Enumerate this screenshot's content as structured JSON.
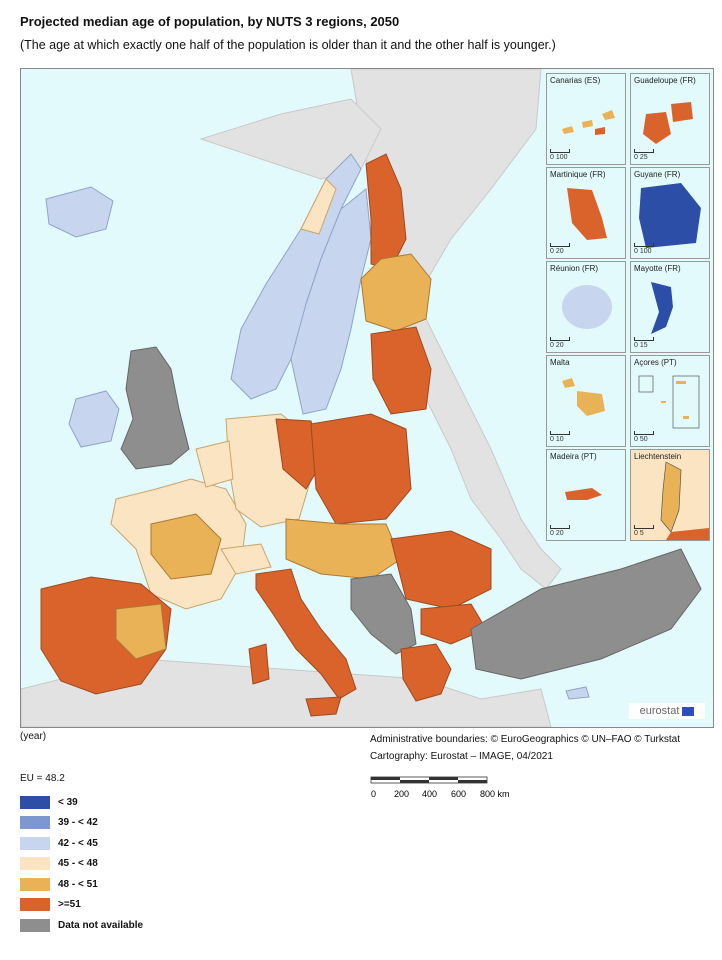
{
  "title": "Projected median age of population, by NUTS 3 regions, 2050",
  "subtitle": "(The age at which exactly one half of the population is older than it and the other half is younger.)",
  "unit_label": "(year)",
  "credits": {
    "line1": "Administrative boundaries: © EuroGeographics © UN–FAO © Turkstat",
    "line2": "Cartography: Eurostat – IMAGE, 04/2021"
  },
  "scale": {
    "ticks": [
      "0",
      "200",
      "400",
      "600",
      "800 km"
    ]
  },
  "eu_value": "EU = 48.2",
  "logo_text": "eurostat",
  "legend": [
    {
      "label": "< 39",
      "color": "#2c4ea6"
    },
    {
      "label": "39 - < 42",
      "color": "#7d97cf"
    },
    {
      "label": "42 - < 45",
      "color": "#c8d5ee"
    },
    {
      "label": "45 - < 48",
      "color": "#fbe4c2"
    },
    {
      "label": "48 - < 51",
      "color": "#eab257"
    },
    {
      "label": ">=51",
      "color": "#d9632a"
    },
    {
      "label": "Data not available",
      "color": "#8e8e8e"
    }
  ],
  "insets": [
    {
      "label": "Canarias (ES)",
      "scale": "0  100"
    },
    {
      "label": "Guadeloupe (FR)",
      "scale": "0  25"
    },
    {
      "label": "Martinique (FR)",
      "scale": "0  20"
    },
    {
      "label": "Guyane (FR)",
      "scale": "0  100"
    },
    {
      "label": "Réunion (FR)",
      "scale": "0  20"
    },
    {
      "label": "Mayotte (FR)",
      "scale": "0  15"
    },
    {
      "label": "Malta",
      "scale": "0  10"
    },
    {
      "label": "Açores (PT)",
      "scale": "0  50"
    },
    {
      "label": "Madeira (PT)",
      "scale": "0  20"
    },
    {
      "label": "Liechtenstein",
      "scale": "0  5"
    }
  ]
}
